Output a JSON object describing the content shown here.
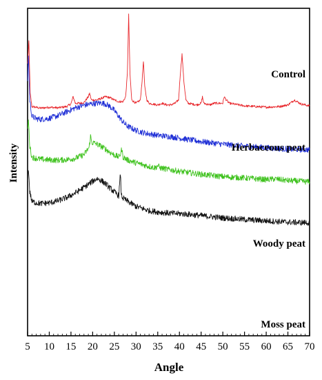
{
  "chart_data": {
    "type": "line",
    "xlabel": "Angle",
    "ylabel": "Intensity",
    "xlim": [
      5,
      70
    ],
    "x_ticks": [
      5,
      10,
      15,
      20,
      25,
      30,
      35,
      40,
      45,
      50,
      55,
      60,
      65,
      70
    ],
    "y_ticks_shown": false,
    "grid": false,
    "legend": "labels placed next to each curve",
    "y_units": "arbitrary, curves vertically offset",
    "series": [
      {
        "name": "Control",
        "color": "#e8262b",
        "points": [
          [
            5.0,
            83
          ],
          [
            5.3,
            90
          ],
          [
            5.6,
            74
          ],
          [
            6,
            70
          ],
          [
            8,
            69.5
          ],
          [
            10,
            69.8
          ],
          [
            12,
            69.6
          ],
          [
            14,
            70
          ],
          [
            15,
            70.8
          ],
          [
            15.5,
            73
          ],
          [
            16,
            71
          ],
          [
            17,
            71
          ],
          [
            18,
            71.2
          ],
          [
            19,
            73
          ],
          [
            19.3,
            74
          ],
          [
            19.7,
            72
          ],
          [
            21,
            72
          ],
          [
            22,
            72.5
          ],
          [
            23,
            73
          ],
          [
            24,
            72.7
          ],
          [
            25,
            72
          ],
          [
            26,
            71.5
          ],
          [
            27,
            71.5
          ],
          [
            27.6,
            73
          ],
          [
            28,
            80
          ],
          [
            28.3,
            98
          ],
          [
            28.6,
            80
          ],
          [
            29,
            72
          ],
          [
            30,
            71
          ],
          [
            31,
            72
          ],
          [
            31.4,
            78
          ],
          [
            31.7,
            84
          ],
          [
            32,
            76
          ],
          [
            32.5,
            72
          ],
          [
            33,
            71
          ],
          [
            35,
            70.5
          ],
          [
            36,
            71
          ],
          [
            37,
            70.5
          ],
          [
            38,
            70.5
          ],
          [
            39,
            71
          ],
          [
            39.8,
            72
          ],
          [
            40.2,
            80
          ],
          [
            40.6,
            86
          ],
          [
            41,
            78
          ],
          [
            41.5,
            72
          ],
          [
            42,
            71
          ],
          [
            44,
            70.5
          ],
          [
            45,
            71
          ],
          [
            45.3,
            73
          ],
          [
            45.6,
            71
          ],
          [
            47,
            70.5
          ],
          [
            48,
            71
          ],
          [
            50,
            71
          ],
          [
            50.3,
            73
          ],
          [
            50.8,
            72
          ],
          [
            51.5,
            71
          ],
          [
            55,
            70.2
          ],
          [
            60,
            69.8
          ],
          [
            63,
            70
          ],
          [
            65,
            70.5
          ],
          [
            66.5,
            72
          ],
          [
            68,
            70.8
          ],
          [
            70,
            70.2
          ]
        ]
      },
      {
        "name": "Herbaceous peat",
        "color": "#1f2fd6",
        "points": [
          [
            5.0,
            78
          ],
          [
            5.2,
            86
          ],
          [
            5.5,
            72
          ],
          [
            6,
            67
          ],
          [
            7,
            66.3
          ],
          [
            8,
            66.1
          ],
          [
            10,
            66.4
          ],
          [
            12,
            67.2
          ],
          [
            14,
            68.4
          ],
          [
            16,
            69.6
          ],
          [
            18,
            70.4
          ],
          [
            20,
            70.9
          ],
          [
            22,
            71.1
          ],
          [
            23,
            70.8
          ],
          [
            24,
            70
          ],
          [
            25,
            68.8
          ],
          [
            26,
            67
          ],
          [
            27,
            65.3
          ],
          [
            28,
            64
          ],
          [
            30,
            62.7
          ],
          [
            32,
            61.9
          ],
          [
            35,
            61.2
          ],
          [
            38,
            60.8
          ],
          [
            40,
            60.4
          ],
          [
            42,
            59.9
          ],
          [
            45,
            59.3
          ],
          [
            50,
            58.5
          ],
          [
            55,
            57.9
          ],
          [
            60,
            57.4
          ],
          [
            65,
            57
          ],
          [
            70,
            56.8
          ]
        ]
      },
      {
        "name": "Woody peat",
        "color": "#3fc21e",
        "points": [
          [
            5.0,
            63
          ],
          [
            5.2,
            66
          ],
          [
            5.5,
            58
          ],
          [
            6,
            54.5
          ],
          [
            7,
            54.2
          ],
          [
            8,
            53.9
          ],
          [
            10,
            53.7
          ],
          [
            12,
            53.6
          ],
          [
            14,
            53.8
          ],
          [
            16,
            54.2
          ],
          [
            18,
            55.3
          ],
          [
            19.2,
            57.5
          ],
          [
            19.5,
            61
          ],
          [
            19.8,
            59
          ],
          [
            20.5,
            58.8
          ],
          [
            21,
            58.5
          ],
          [
            22,
            57.8
          ],
          [
            23,
            57
          ],
          [
            24,
            56
          ],
          [
            25,
            55.2
          ],
          [
            26,
            54.6
          ],
          [
            26.4,
            55.5
          ],
          [
            26.7,
            57
          ],
          [
            27,
            54.6
          ],
          [
            28,
            53.7
          ],
          [
            30,
            52.8
          ],
          [
            33,
            51.7
          ],
          [
            34.5,
            51.3
          ],
          [
            35,
            52
          ],
          [
            35.5,
            51.3
          ],
          [
            37,
            50.9
          ],
          [
            40,
            50.2
          ],
          [
            45,
            49.3
          ],
          [
            50,
            48.6
          ],
          [
            55,
            48.2
          ],
          [
            60,
            47.7
          ],
          [
            62,
            47.9
          ],
          [
            65,
            47.4
          ],
          [
            70,
            47
          ]
        ]
      },
      {
        "name": "Moss peat",
        "color": "#111111",
        "points": [
          [
            5.0,
            48
          ],
          [
            5.2,
            51
          ],
          [
            5.5,
            44
          ],
          [
            6,
            41
          ],
          [
            7,
            40.6
          ],
          [
            8,
            40.4
          ],
          [
            10,
            40.6
          ],
          [
            12,
            41.2
          ],
          [
            14,
            42.2
          ],
          [
            16,
            43.6
          ],
          [
            18,
            45.3
          ],
          [
            20,
            47.2
          ],
          [
            21,
            48
          ],
          [
            22,
            47.4
          ],
          [
            23,
            46.4
          ],
          [
            24,
            45.1
          ],
          [
            25,
            43.9
          ],
          [
            26,
            42.8
          ],
          [
            26.2,
            46
          ],
          [
            26.4,
            49.5
          ],
          [
            26.6,
            43
          ],
          [
            27,
            42
          ],
          [
            28,
            41.1
          ],
          [
            30,
            39.5
          ],
          [
            33,
            38.2
          ],
          [
            35,
            37.8
          ],
          [
            38,
            37.4
          ],
          [
            40,
            37.3
          ],
          [
            42,
            37.1
          ],
          [
            45,
            36.7
          ],
          [
            50,
            36
          ],
          [
            55,
            35.5
          ],
          [
            60,
            35.1
          ],
          [
            65,
            34.7
          ],
          [
            70,
            34.5
          ]
        ]
      }
    ]
  }
}
